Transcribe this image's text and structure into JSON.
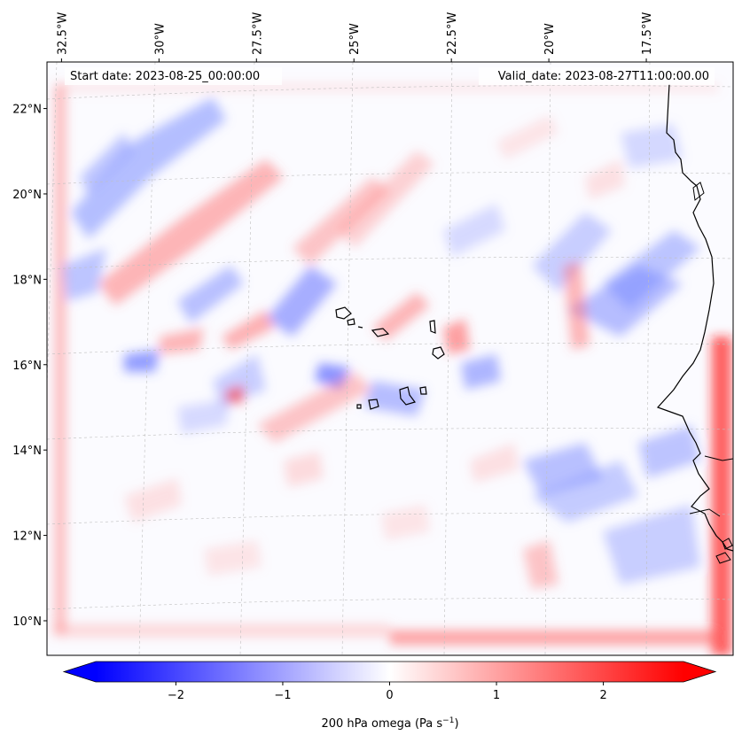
{
  "map": {
    "annotations": {
      "start_date": "Start date: 2023-08-25_00:00:00",
      "valid_date": "Valid_date: 2023-08-27T11:00:00.00"
    },
    "lon_ticks": [
      {
        "label": "32.5°W",
        "value": -32.5
      },
      {
        "label": "30°W",
        "value": -30
      },
      {
        "label": "27.5°W",
        "value": -27.5
      },
      {
        "label": "25°W",
        "value": -25
      },
      {
        "label": "22.5°W",
        "value": -22.5
      },
      {
        "label": "20°W",
        "value": -20
      },
      {
        "label": "17.5°W",
        "value": -17.5
      }
    ],
    "lat_ticks": [
      {
        "label": "22°N",
        "value": 22
      },
      {
        "label": "20°N",
        "value": 20
      },
      {
        "label": "18°N",
        "value": 18
      },
      {
        "label": "16°N",
        "value": 16
      },
      {
        "label": "14°N",
        "value": 14
      },
      {
        "label": "12°N",
        "value": 12
      },
      {
        "label": "10°N",
        "value": 10
      }
    ],
    "extent": {
      "lon_min": -32.6,
      "lon_max": -15.0,
      "lat_min": 8.9,
      "lat_max": 22.8
    },
    "colormap": "bwr",
    "grid": "dashed gray gridlines"
  },
  "colorbar": {
    "label_main": "200 hPa omega (Pa s",
    "label_exp": "−1",
    "label_close": ")",
    "vmin": -2.75,
    "vmax": 2.75,
    "extend": "both",
    "ticks": [
      {
        "label": "−2",
        "value": -2
      },
      {
        "label": "−1",
        "value": -1
      },
      {
        "label": "0",
        "value": 0
      },
      {
        "label": "1",
        "value": 1
      },
      {
        "label": "2",
        "value": 2
      }
    ],
    "colors": {
      "min": "#0000ff",
      "mid": "#ffffff",
      "max": "#ff0000"
    }
  }
}
